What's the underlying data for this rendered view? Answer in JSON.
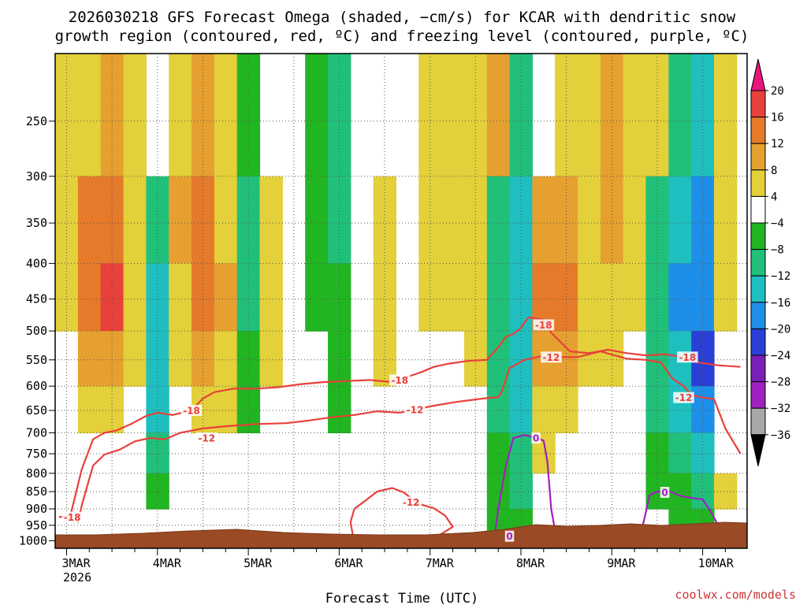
{
  "chart_data": {
    "type": "heatmap",
    "title_lines": [
      "2026030218 GFS Forecast Omega (shaded, −cm/s) for KCAR with dendritic snow",
      "growth region (contoured, red, ºC) and freezing level (contoured, purple, ºC)"
    ],
    "xlabel": "Forecast Time (UTC)",
    "credit": "coolwx.com/models",
    "x_ticks": [
      {
        "label": "3MAR",
        "hour": 0
      },
      {
        "label": "4MAR",
        "hour": 24
      },
      {
        "label": "5MAR",
        "hour": 48
      },
      {
        "label": "6MAR",
        "hour": 72
      },
      {
        "label": "7MAR",
        "hour": 96
      },
      {
        "label": "8MAR",
        "hour": 120
      },
      {
        "label": "9MAR",
        "hour": 144
      },
      {
        "label": "10MAR",
        "hour": 168
      }
    ],
    "x_year": "2026",
    "x_range_hours": [
      -2,
      178
    ],
    "y_ticks": [
      250,
      300,
      350,
      400,
      450,
      500,
      550,
      600,
      650,
      700,
      750,
      800,
      850,
      900,
      950,
      1000
    ],
    "y_range_hPa": [
      200,
      1025
    ],
    "colorbar": {
      "labels": [
        "20",
        "16",
        "12",
        "8",
        "4",
        "−4",
        "−8",
        "−12",
        "−16",
        "−20",
        "−24",
        "−28",
        "−32",
        "−36"
      ],
      "colors": [
        "#e8157a",
        "#e8403a",
        "#e57a2a",
        "#e6a030",
        "#e3d03a",
        "#ffffff",
        "#22b522",
        "#21c07a",
        "#1fbfbf",
        "#1e8fe8",
        "#2a3fd6",
        "#7a1fb8",
        "#a020c0",
        "#a8a8a8",
        "#000000"
      ]
    },
    "contour_labels": {
      "dgz_top": "-18",
      "dgz_bottom": "-12",
      "freezing": "0"
    },
    "series": [
      {
        "name": "-18C isotherm (hPa)",
        "color": "#e8403a",
        "points": [
          [
            -2,
            925
          ],
          [
            1,
            920
          ],
          [
            4,
            790
          ],
          [
            7,
            715
          ],
          [
            10,
            700
          ],
          [
            13,
            695
          ],
          [
            17,
            680
          ],
          [
            21,
            662
          ],
          [
            24,
            655
          ],
          [
            28,
            660
          ],
          [
            33,
            650
          ],
          [
            36,
            625
          ],
          [
            39,
            612
          ],
          [
            44,
            605
          ],
          [
            50,
            605
          ],
          [
            56,
            602
          ],
          [
            62,
            596
          ],
          [
            68,
            592
          ],
          [
            74,
            590
          ],
          [
            80,
            588
          ],
          [
            86,
            592
          ],
          [
            90,
            582
          ],
          [
            94,
            572
          ],
          [
            97,
            563
          ],
          [
            101,
            557
          ],
          [
            106,
            552
          ],
          [
            111,
            550
          ],
          [
            114,
            528
          ],
          [
            116,
            510
          ],
          [
            118,
            505
          ],
          [
            120,
            495
          ],
          [
            122,
            478
          ],
          [
            126,
            482
          ],
          [
            128,
            503
          ],
          [
            133,
            535
          ],
          [
            138,
            538
          ],
          [
            143,
            532
          ],
          [
            148,
            538
          ],
          [
            153,
            542
          ],
          [
            158,
            540
          ],
          [
            163,
            545
          ],
          [
            167,
            555
          ],
          [
            172,
            560
          ],
          [
            178,
            563
          ]
        ]
      },
      {
        "name": "-12C isotherm (hPa)",
        "color": "#e8403a",
        "points": [
          [
            3,
            943
          ],
          [
            4,
            890
          ],
          [
            7,
            780
          ],
          [
            10,
            752
          ],
          [
            14,
            740
          ],
          [
            18,
            720
          ],
          [
            22,
            712
          ],
          [
            26,
            715
          ],
          [
            30,
            700
          ],
          [
            36,
            690
          ],
          [
            42,
            685
          ],
          [
            50,
            680
          ],
          [
            58,
            678
          ],
          [
            64,
            672
          ],
          [
            70,
            665
          ],
          [
            76,
            660
          ],
          [
            82,
            652
          ],
          [
            88,
            655
          ],
          [
            92,
            648
          ],
          [
            97,
            640
          ],
          [
            103,
            632
          ],
          [
            110,
            625
          ],
          [
            114,
            622
          ],
          [
            115,
            610
          ],
          [
            117,
            565
          ],
          [
            121,
            550
          ],
          [
            125,
            544
          ],
          [
            130,
            545
          ],
          [
            135,
            545
          ],
          [
            141,
            535
          ],
          [
            148,
            548
          ],
          [
            153,
            550
          ],
          [
            157,
            555
          ],
          [
            160,
            585
          ],
          [
            163,
            600
          ],
          [
            165,
            618
          ],
          [
            168,
            623
          ],
          [
            171,
            626
          ],
          [
            174,
            690
          ],
          [
            178,
            750
          ]
        ]
      },
      {
        "name": "-12C closed cell (hPa)",
        "color": "#e8403a",
        "closed": true,
        "points": [
          [
            76,
            1010
          ],
          [
            75,
            940
          ],
          [
            76,
            900
          ],
          [
            79,
            875
          ],
          [
            82,
            850
          ],
          [
            86,
            840
          ],
          [
            89,
            852
          ],
          [
            93,
            885
          ],
          [
            97,
            898
          ],
          [
            100,
            920
          ],
          [
            102,
            955
          ],
          [
            98,
            985
          ],
          [
            93,
            995
          ],
          [
            89,
            1010
          ],
          [
            84,
            1020
          ]
        ]
      },
      {
        "name": "0C freezing level (hPa)",
        "color": "#a020c0",
        "points": [
          [
            113,
            1015
          ],
          [
            113,
            990
          ],
          [
            114,
            900
          ],
          [
            115,
            840
          ],
          [
            116,
            782
          ],
          [
            118,
            712
          ],
          [
            121,
            705
          ],
          [
            124,
            712
          ],
          [
            126,
            718
          ],
          [
            127,
            770
          ],
          [
            128,
            900
          ],
          [
            129,
            965
          ],
          [
            130,
            1005
          ]
        ]
      },
      {
        "name": "0C freezing level east (hPa)",
        "color": "#a020c0",
        "points": [
          [
            152,
            960
          ],
          [
            153,
            910
          ],
          [
            154,
            860
          ],
          [
            156,
            850
          ],
          [
            159,
            848
          ],
          [
            162,
            862
          ],
          [
            165,
            868
          ],
          [
            168,
            872
          ],
          [
            170,
            905
          ],
          [
            172,
            948
          ],
          [
            174,
            985
          ]
        ]
      }
    ],
    "sample_grid": {
      "description": "Omega shading sampled on an hourly/pressure grid (-cm/s)",
      "times_hours": [
        0,
        6,
        12,
        18,
        24,
        30,
        36,
        42,
        48,
        54,
        60,
        66,
        72,
        78,
        84,
        90,
        96,
        102,
        108,
        114,
        120,
        126,
        132,
        138,
        144,
        150,
        156,
        162,
        168,
        174
      ],
      "levels_hPa": [
        250,
        350,
        450,
        550,
        650,
        750,
        850,
        950
      ],
      "values": [
        [
          4,
          6,
          8,
          4,
          2,
          6,
          10,
          4,
          -6,
          2,
          0,
          -4,
          -8,
          0,
          2,
          0,
          4,
          6,
          4,
          8,
          -10,
          2,
          6,
          4,
          8,
          6,
          4,
          -10,
          -14,
          6
        ],
        [
          6,
          12,
          14,
          4,
          -10,
          8,
          12,
          6,
          -8,
          4,
          2,
          -6,
          -8,
          2,
          4,
          2,
          6,
          4,
          6,
          -8,
          -14,
          8,
          10,
          6,
          8,
          4,
          -8,
          -14,
          -16,
          6
        ],
        [
          4,
          14,
          16,
          6,
          -14,
          6,
          14,
          8,
          -8,
          4,
          2,
          -4,
          -6,
          2,
          4,
          0,
          4,
          4,
          6,
          -10,
          -14,
          14,
          12,
          4,
          6,
          4,
          -10,
          -16,
          -18,
          4
        ],
        [
          2,
          8,
          10,
          4,
          -12,
          4,
          10,
          6,
          -6,
          4,
          2,
          -2,
          -4,
          2,
          4,
          0,
          2,
          2,
          4,
          -10,
          -14,
          10,
          8,
          4,
          4,
          2,
          -10,
          -14,
          -20,
          2
        ],
        [
          0,
          4,
          6,
          2,
          -14,
          2,
          6,
          4,
          -4,
          2,
          0,
          -2,
          -4,
          0,
          2,
          0,
          0,
          2,
          2,
          -8,
          -12,
          6,
          6,
          2,
          2,
          0,
          -8,
          -12,
          -16,
          0
        ],
        [
          0,
          2,
          2,
          0,
          -10,
          0,
          2,
          2,
          -2,
          0,
          0,
          0,
          -2,
          0,
          0,
          0,
          0,
          0,
          0,
          -6,
          -10,
          4,
          2,
          0,
          0,
          0,
          -6,
          -10,
          -12,
          0
        ],
        [
          0,
          0,
          0,
          0,
          -6,
          0,
          0,
          0,
          0,
          0,
          0,
          0,
          0,
          0,
          0,
          0,
          0,
          0,
          0,
          -4,
          -8,
          2,
          0,
          0,
          0,
          0,
          -4,
          -6,
          -8,
          4
        ],
        [
          0,
          0,
          0,
          0,
          -2,
          0,
          0,
          0,
          0,
          0,
          0,
          0,
          0,
          0,
          0,
          0,
          0,
          0,
          0,
          -4,
          -6,
          0,
          0,
          0,
          0,
          0,
          -2,
          -4,
          -6,
          2
        ]
      ]
    }
  }
}
